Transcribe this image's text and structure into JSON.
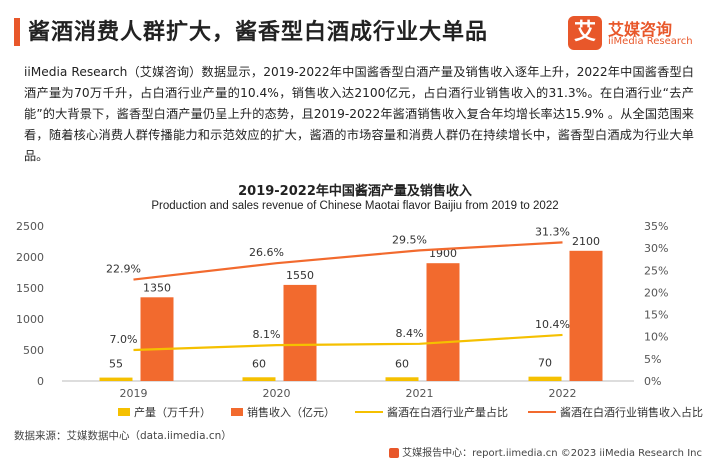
{
  "header": {
    "title": "酱酒消费人群扩大，酱香型白酒成行业大单品",
    "logo_glyph": "艾",
    "logo_cn": "艾媒咨询",
    "logo_en": "iiMedia Research"
  },
  "body_text": [
    "iiMedia Research（艾媒咨询）数据显示，2019-2022年中国酱香型白酒产量及销售收入逐年上升，2022年中国酱香型白酒产量为70万千升，占白酒行业产量的10.4%，销售收入达2100亿元，占白酒行业销售收入的31.3%。在白酒行业“去产能”的大背景下，酱香型白酒产量仍呈上升的态势，且2019-2022年酱酒销售收入复合年均增长率达15.9% 。从全国范围来看，随着核心消费人群传播能力和示范效应的扩大，酱酒的市场容量和消费人群仍在持续增长中，酱香型白酒成为行业大单品。"
  ],
  "chart_data": {
    "type": "bar",
    "title": "2019-2022年中国酱酒产量及销售收入",
    "subtitle": "Production and sales revenue of Chinese Maotai flavor Baijiu from 2019 to 2022",
    "categories": [
      "2019",
      "2020",
      "2021",
      "2022"
    ],
    "series": [
      {
        "name": "产量（万千升）",
        "kind": "bar",
        "axis": "left",
        "color": "#f5c000",
        "values": [
          55,
          60,
          60,
          70
        ]
      },
      {
        "name": "销售收入（亿元）",
        "kind": "bar",
        "axis": "left",
        "color": "#f26a2e",
        "values": [
          1350,
          1550,
          1900,
          2100
        ]
      },
      {
        "name": "酱酒在白酒行业产量占比",
        "kind": "line",
        "axis": "right",
        "color": "#f5c000",
        "values": [
          7.0,
          8.1,
          8.4,
          10.4
        ],
        "labels": [
          "7.0%",
          "8.1%",
          "8.4%",
          "10.4%"
        ]
      },
      {
        "name": "酱酒在白酒行业销售收入占比",
        "kind": "line",
        "axis": "right",
        "color": "#f26a2e",
        "values": [
          22.9,
          26.6,
          29.5,
          31.3
        ],
        "labels": [
          "22.9%",
          "26.6%",
          "29.5%",
          "31.3%"
        ]
      }
    ],
    "y_left": {
      "range": [
        0,
        2500
      ],
      "ticks": [
        0,
        500,
        1000,
        1500,
        2000,
        2500
      ]
    },
    "y_right": {
      "range": [
        0,
        35
      ],
      "ticks": [
        "0%",
        "5%",
        "10%",
        "15%",
        "20%",
        "25%",
        "30%",
        "35%"
      ]
    },
    "grid": false,
    "legend_position": "bottom"
  },
  "source": "数据来源：艾媒数据中心（data.iimedia.cn）",
  "footer": "艾媒报告中心：report.iimedia.cn ©2023  iiMedia Research  Inc"
}
